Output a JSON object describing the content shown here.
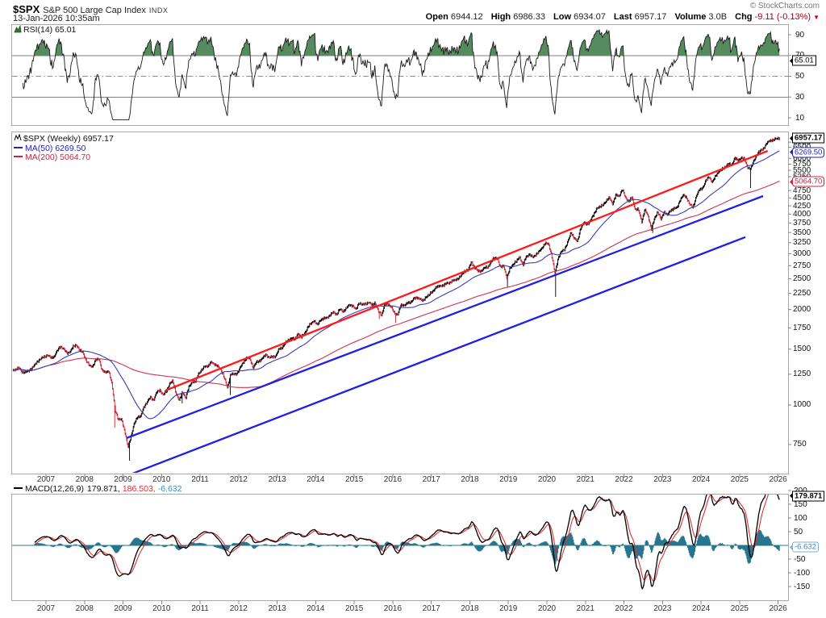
{
  "header": {
    "symbol": "$SPX",
    "name": "S&P 500 Large Cap Index",
    "exchange": "INDX",
    "datetime": "13-Jan-2026 10:35am",
    "copyright": "© StockCharts.com",
    "quote": {
      "open_label": "Open",
      "open": "6944.12",
      "high_label": "High",
      "high": "6986.33",
      "low_label": "Low",
      "low": "6934.07",
      "last_label": "Last",
      "last": "6957.17",
      "volume_label": "Volume",
      "volume": "3.0B",
      "chg_label": "Chg",
      "chg": "-9.11 (-0.13%)"
    }
  },
  "rsi_panel": {
    "legend": "RSI(14) 65.01",
    "callout": "65.01",
    "axis_labels": [
      90,
      70,
      50,
      30,
      10
    ]
  },
  "main_panel": {
    "legend_symbol": "$SPX (Weekly) 6957.17",
    "legend_ma50": "MA(50) 6269.50",
    "legend_ma200": "MA(200) 5064.70",
    "callout_last": "6957.17",
    "callout_ma50": "6269.50",
    "callout_ma200": "5064.70",
    "axis_labels": [
      6750,
      6500,
      6000,
      5750,
      5500,
      5250,
      4750,
      4500,
      4250,
      4000,
      3750,
      3500,
      3250,
      3000,
      2750,
      2500,
      2250,
      2000,
      1750,
      1500,
      1250,
      1000,
      750
    ]
  },
  "macd_panel": {
    "legend": {
      "label": "MACD(12,26,9)",
      "macd_value": "179.871,",
      "signal_value": "186.503,",
      "hist_value": "-6.632"
    },
    "callout_macd": "179.871",
    "callout_hist": "-6.632",
    "axis_labels": [
      200,
      150,
      100,
      50,
      -50,
      -100,
      -150
    ]
  },
  "x_axis_years": [
    "2007",
    "2008",
    "2009",
    "2010",
    "2011",
    "2012",
    "2013",
    "2014",
    "2015",
    "2016",
    "2017",
    "2018",
    "2019",
    "2020",
    "2021",
    "2022",
    "2023",
    "2024",
    "2025",
    "2026"
  ],
  "colors": {
    "candle_up": "#000000",
    "candle_down": "#cc2233",
    "ma50": "#3a3ab8",
    "ma200": "#cc3355",
    "trend_red": "#ff1a1a",
    "trend_blue": "#1f1fe6",
    "rsi_line": "#1a1a1a",
    "rsi_fill": "#578a5f",
    "macd_line": "#000000",
    "signal_line": "#e03030",
    "histogram": "#26768f",
    "panel_border": "#a8a8a8",
    "gridline": "#808080",
    "chg_negative": "#990011"
  },
  "chart_data": {
    "type": "candlestick",
    "timeframe": "weekly",
    "title": "$SPX S&P 500 Large Cap Index (Weekly)",
    "last_price": 6957.17,
    "ohlc": {
      "open": 6944.12,
      "high": 6986.33,
      "low": 6934.07,
      "last": 6957.17,
      "volume": "3.0B",
      "chg": -9.11,
      "chg_pct": -0.13
    },
    "x_range_years": [
      2006.1,
      2026.3
    ],
    "price_axis": {
      "scale": "log",
      "min": 600,
      "max": 7300
    },
    "monthly_closes": {
      "start_year": 2006.042,
      "step_years": 0.083333,
      "values": [
        1280,
        1281,
        1295,
        1311,
        1270,
        1270,
        1277,
        1304,
        1336,
        1378,
        1401,
        1418,
        1438,
        1406,
        1421,
        1482,
        1531,
        1503,
        1455,
        1474,
        1527,
        1549,
        1481,
        1468,
        1378,
        1331,
        1323,
        1386,
        1400,
        1280,
        1267,
        1283,
        1166,
        969,
        896,
        903,
        826,
        735,
        798,
        873,
        919,
        919,
        987,
        1021,
        1057,
        1036,
        1096,
        1115,
        1074,
        1104,
        1169,
        1187,
        1089,
        1031,
        1102,
        1049,
        1141,
        1183,
        1181,
        1258,
        1286,
        1327,
        1326,
        1364,
        1345,
        1321,
        1292,
        1219,
        1131,
        1253,
        1247,
        1258,
        1312,
        1366,
        1408,
        1398,
        1310,
        1362,
        1379,
        1407,
        1441,
        1412,
        1416,
        1426,
        1498,
        1515,
        1569,
        1598,
        1631,
        1606,
        1686,
        1633,
        1682,
        1757,
        1806,
        1848,
        1783,
        1859,
        1872,
        1884,
        1924,
        1960,
        1931,
        2003,
        1972,
        2018,
        2068,
        2059,
        1995,
        2105,
        2068,
        2086,
        2107,
        2063,
        2104,
        1972,
        1920,
        2079,
        2080,
        2044,
        1940,
        1932,
        2060,
        2065,
        2097,
        2099,
        2174,
        2171,
        2168,
        2126,
        2199,
        2239,
        2279,
        2364,
        2363,
        2384,
        2412,
        2423,
        2470,
        2472,
        2519,
        2575,
        2648,
        2674,
        2824,
        2714,
        2641,
        2648,
        2705,
        2718,
        2816,
        2902,
        2914,
        2712,
        2760,
        2507,
        2704,
        2784,
        2834,
        2946,
        2752,
        2942,
        2980,
        2926,
        2977,
        3038,
        3141,
        3231,
        3226,
        2954,
        2585,
        2912,
        3044,
        3100,
        3271,
        3500,
        3363,
        3270,
        3622,
        3756,
        3714,
        3811,
        3973,
        4181,
        4204,
        4298,
        4395,
        4523,
        4308,
        4605,
        4567,
        4766,
        4516,
        4374,
        4530,
        4132,
        4132,
        3785,
        4130,
        3955,
        3586,
        3872,
        4080,
        3840,
        4077,
        3970,
        4109,
        4169,
        4180,
        4450,
        4589,
        4508,
        4288,
        4194,
        4568,
        4770,
        4846,
        5096,
        5254,
        5036,
        5278,
        5460,
        5522,
        5648,
        5762,
        5705,
        6032,
        5882,
        6041,
        5955,
        5612,
        5569,
        5912,
        6205,
        6339,
        6460,
        6689,
        6840,
        6849,
        6920,
        6957
      ]
    },
    "spike_lows": [
      [
        2008.79,
        848
      ],
      [
        2009.17,
        667
      ],
      [
        2010.53,
        1011
      ],
      [
        2011.79,
        1075
      ],
      [
        2015.65,
        1867
      ],
      [
        2016.08,
        1812
      ],
      [
        2018.97,
        2347
      ],
      [
        2020.22,
        2192
      ],
      [
        2022.75,
        3492
      ],
      [
        2025.28,
        4836
      ]
    ],
    "trendlines": [
      {
        "name": "resistance-line",
        "color": "#ff1a1a",
        "from": [
          2010.1,
          1111
        ],
        "to": [
          2025.73,
          6336
        ]
      },
      {
        "name": "channel-upper",
        "color": "#1f1fe6",
        "from": [
          2009.09,
          786
        ],
        "to": [
          2025.61,
          4562
        ]
      },
      {
        "name": "channel-lower",
        "color": "#1f1fe6",
        "from": [
          2009.24,
          607
        ],
        "to": [
          2025.15,
          3384
        ]
      }
    ],
    "indicators": {
      "rsi": {
        "period": 14,
        "last": 65.01,
        "overbought": 70,
        "midline": 50,
        "oversold": 30
      },
      "ma": [
        {
          "type": "sma",
          "period": 50,
          "last": 6269.5
        },
        {
          "type": "sma",
          "period": 200,
          "last": 5064.7
        }
      ],
      "macd": {
        "fast": 12,
        "slow": 26,
        "signal_period": 9,
        "macd_last": 179.871,
        "signal_last": 186.503,
        "hist_last": -6.632
      }
    }
  }
}
